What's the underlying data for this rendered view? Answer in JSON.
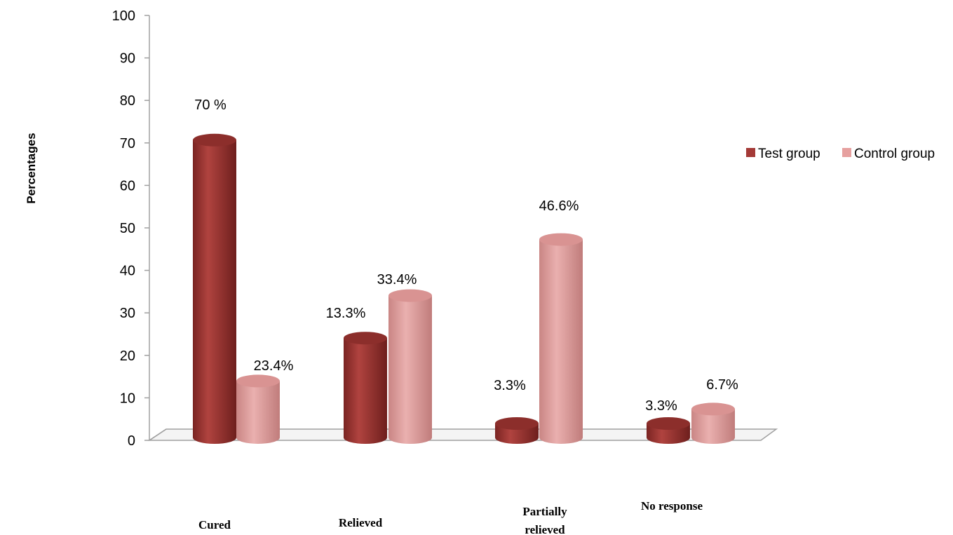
{
  "chart_data": {
    "type": "bar",
    "categories": [
      "Cured",
      "Relieved",
      "Partially relieved",
      "No response"
    ],
    "series": [
      {
        "name": "Test group",
        "values": [
          70,
          23.4,
          3.3,
          3.3
        ],
        "labels": [
          "70 %",
          "23.4%",
          "3.3%",
          "3.3%"
        ],
        "color": "#a43a37"
      },
      {
        "name": "Control group",
        "values": [
          13.3,
          33.4,
          46.6,
          6.7
        ],
        "labels": [
          "13.3%",
          "33.4%",
          "46.6%",
          "6.7%"
        ],
        "color": "#e6a09f"
      }
    ],
    "ylabel": "Percentages",
    "xlabel": "",
    "ylim": [
      0,
      100
    ],
    "yticks": [
      0,
      10,
      20,
      30,
      40,
      50,
      60,
      70,
      80,
      90,
      100
    ],
    "legend_position": "right",
    "grid": false,
    "style": "3d-cylinder"
  }
}
